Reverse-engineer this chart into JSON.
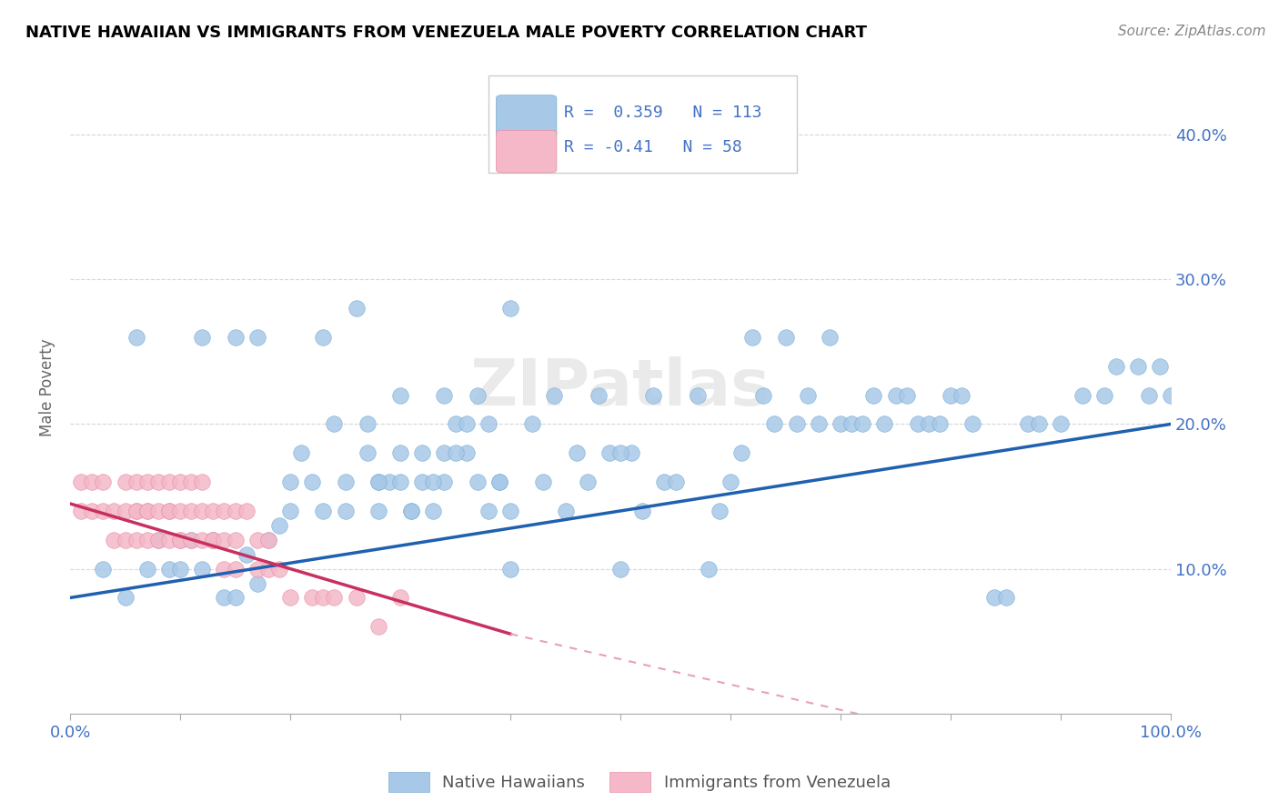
{
  "title": "NATIVE HAWAIIAN VS IMMIGRANTS FROM VENEZUELA MALE POVERTY CORRELATION CHART",
  "source": "Source: ZipAtlas.com",
  "ylabel": "Male Poverty",
  "xlim": [
    0,
    100
  ],
  "ylim": [
    0,
    45
  ],
  "blue_color": "#a8c8e8",
  "blue_edge_color": "#7aafd4",
  "pink_color": "#f4b8c8",
  "pink_edge_color": "#e890a8",
  "blue_line_color": "#2060b0",
  "pink_line_color": "#c83060",
  "pink_dash_color": "#e8a0b8",
  "R_blue": 0.359,
  "N_blue": 113,
  "R_pink": -0.41,
  "N_pink": 58,
  "tick_color": "#4472c4",
  "label_color": "#666666",
  "grid_color": "#cccccc",
  "watermark_text": "ZIPatlas",
  "blue_scatter_x": [
    3,
    5,
    6,
    7,
    8,
    9,
    10,
    11,
    12,
    12,
    13,
    14,
    15,
    15,
    16,
    17,
    17,
    18,
    19,
    20,
    20,
    21,
    22,
    23,
    23,
    24,
    25,
    25,
    26,
    27,
    28,
    28,
    29,
    30,
    30,
    31,
    32,
    33,
    34,
    34,
    35,
    36,
    37,
    38,
    39,
    40,
    40,
    42,
    43,
    44,
    45,
    46,
    47,
    48,
    49,
    50,
    51,
    52,
    53,
    54,
    55,
    57,
    58,
    59,
    60,
    61,
    62,
    63,
    64,
    65,
    66,
    67,
    68,
    69,
    70,
    71,
    72,
    73,
    74,
    75,
    76,
    77,
    78,
    79,
    80,
    81,
    82,
    84,
    85,
    87,
    88,
    90,
    92,
    94,
    95,
    97,
    98,
    99,
    100,
    27,
    28,
    30,
    31,
    32,
    33,
    34,
    35,
    36,
    37,
    38,
    39,
    40,
    50
  ],
  "blue_scatter_y": [
    10,
    8,
    26,
    10,
    12,
    10,
    10,
    12,
    10,
    26,
    12,
    8,
    8,
    26,
    11,
    9,
    26,
    12,
    13,
    14,
    16,
    18,
    16,
    26,
    14,
    20,
    14,
    16,
    28,
    20,
    14,
    16,
    16,
    16,
    18,
    14,
    18,
    14,
    16,
    18,
    20,
    18,
    22,
    14,
    16,
    14,
    28,
    20,
    16,
    22,
    14,
    18,
    16,
    22,
    18,
    10,
    18,
    14,
    22,
    16,
    16,
    22,
    10,
    14,
    16,
    18,
    26,
    22,
    20,
    26,
    20,
    22,
    20,
    26,
    20,
    20,
    20,
    22,
    20,
    22,
    22,
    20,
    20,
    20,
    22,
    22,
    20,
    8,
    8,
    20,
    20,
    20,
    22,
    22,
    24,
    24,
    22,
    24,
    22,
    18,
    16,
    22,
    14,
    16,
    16,
    22,
    18,
    20,
    16,
    20,
    16,
    10,
    18
  ],
  "pink_scatter_x": [
    1,
    1,
    2,
    2,
    3,
    3,
    4,
    4,
    5,
    5,
    5,
    6,
    6,
    6,
    6,
    7,
    7,
    7,
    7,
    8,
    8,
    8,
    9,
    9,
    9,
    9,
    10,
    10,
    10,
    10,
    11,
    11,
    11,
    12,
    12,
    12,
    13,
    13,
    13,
    14,
    14,
    14,
    15,
    15,
    15,
    16,
    17,
    17,
    18,
    18,
    19,
    20,
    22,
    23,
    24,
    26,
    28,
    30
  ],
  "pink_scatter_y": [
    14,
    16,
    16,
    14,
    16,
    14,
    14,
    12,
    16,
    14,
    12,
    14,
    12,
    16,
    14,
    16,
    14,
    12,
    14,
    16,
    14,
    12,
    14,
    16,
    12,
    14,
    12,
    16,
    14,
    12,
    14,
    12,
    16,
    12,
    14,
    16,
    12,
    14,
    12,
    14,
    12,
    10,
    12,
    14,
    10,
    14,
    10,
    12,
    10,
    12,
    10,
    8,
    8,
    8,
    8,
    8,
    6,
    8
  ]
}
